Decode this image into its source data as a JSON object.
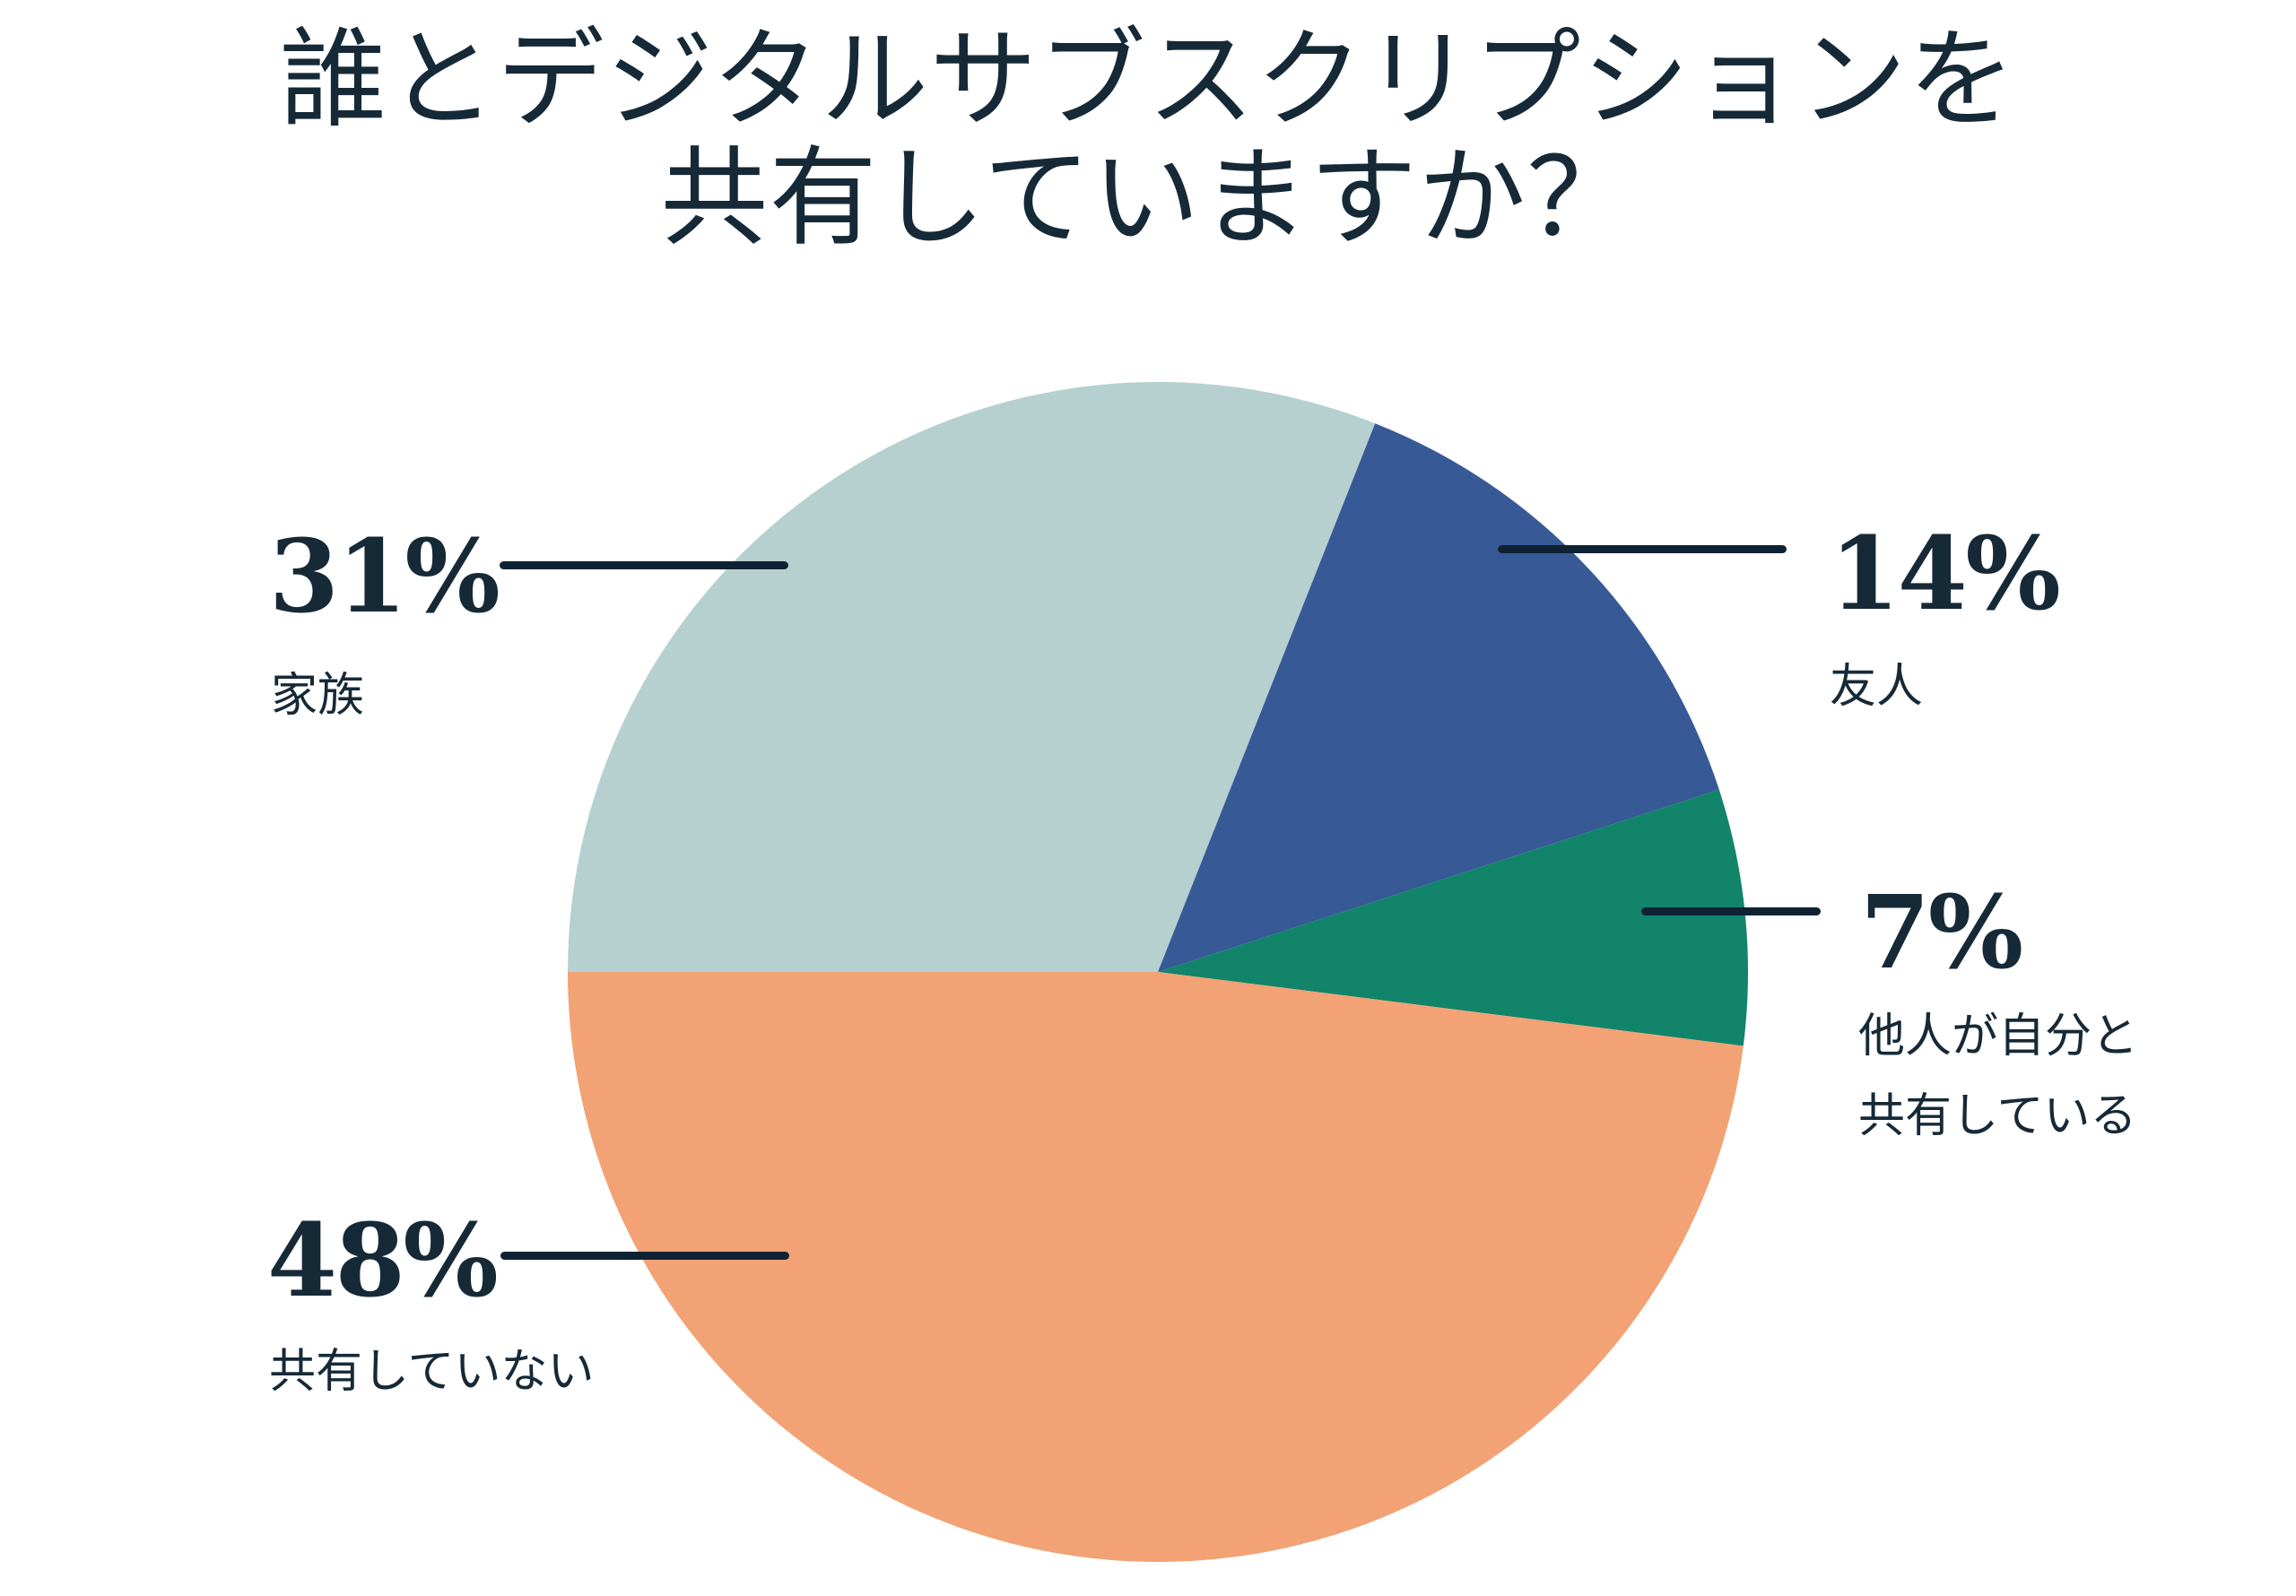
{
  "page": {
    "background": "#ffffff",
    "text_color": "#162937",
    "callout_line_color": "#0e2233"
  },
  "title": {
    "line1": "誰とデジタルサブスクリプションを",
    "line2": "共有していますか？"
  },
  "chart_data": {
    "type": "pie",
    "title": "誰とデジタルサブスクリプションを共有していますか？",
    "start_angle_deg": 270,
    "direction": "clockwise",
    "legend_position": "callouts",
    "slices": [
      {
        "key": "family",
        "label": "家族",
        "value_pct": 31,
        "color": "#b6d0d0"
      },
      {
        "key": "friends",
        "label": "友人",
        "value_pct": 14,
        "color": "#375a97"
      },
      {
        "key": "others",
        "label": "他人が自分と共有している",
        "value_pct": 7,
        "color": "#12846a"
      },
      {
        "key": "none",
        "label": "共有していない",
        "value_pct": 48,
        "color": "#f2a274"
      }
    ]
  },
  "callouts": {
    "family": {
      "pct": "31%",
      "label": "家族"
    },
    "friends": {
      "pct": "14%",
      "label": "友人"
    },
    "others": {
      "pct": "7%",
      "label": "他人が自分と\n共有している"
    },
    "none": {
      "pct": "48%",
      "label": "共有していない"
    }
  }
}
